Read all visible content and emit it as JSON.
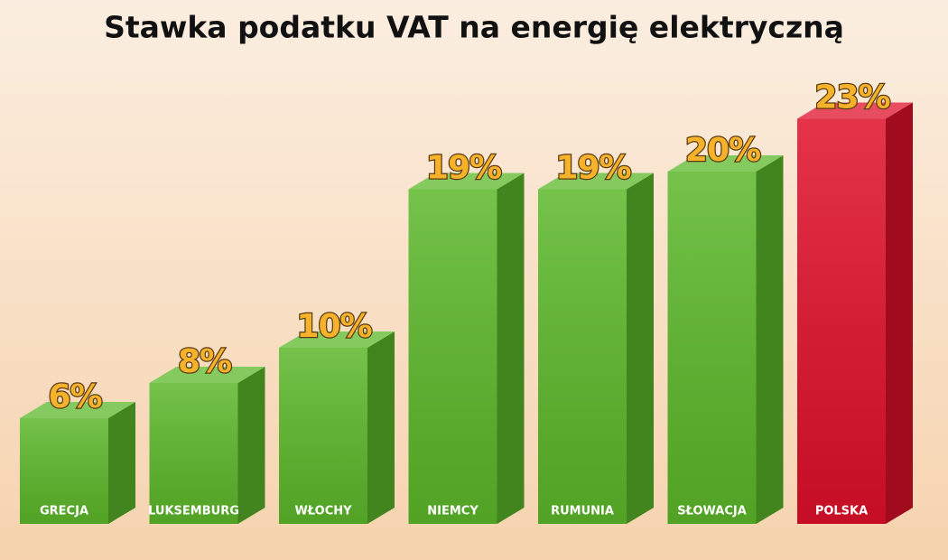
{
  "chart_data": {
    "type": "bar3d",
    "title": "Stawka podatku VAT na energię elektryczną",
    "categories": [
      "GRECJA",
      "LUKSEMBURG",
      "WŁOCHY",
      "NIEMCY",
      "RUMUNIA",
      "SŁOWACJA",
      "POLSKA"
    ],
    "values": [
      6,
      8,
      10,
      19,
      19,
      20,
      23
    ],
    "value_labels": [
      "6%",
      "8%",
      "10%",
      "19%",
      "19%",
      "20%",
      "23%"
    ],
    "colors": [
      "#5cb82a",
      "#5cb82a",
      "#5cb82a",
      "#5cb82a",
      "#5cb82a",
      "#5cb82a",
      "#e0102a"
    ]
  }
}
